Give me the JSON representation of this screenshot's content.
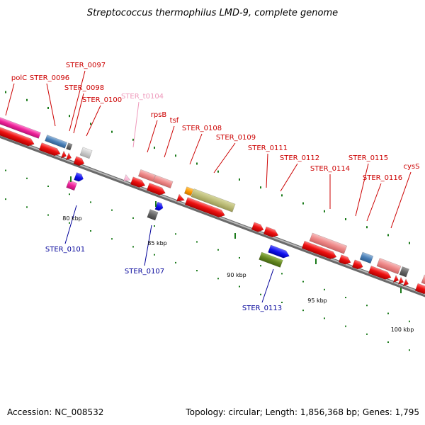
{
  "title": "Streptococcus thermophilus LMD-9, complete genome",
  "footer": {
    "accession": "Accession: NC_008532",
    "summary": "Topology: circular; Length: 1,856,368 bp; Genes: 1,795"
  },
  "colors": {
    "red_gene": "#ee1111",
    "red_label": "#cc0000",
    "blue_label": "#000099",
    "pink_label": "#ee99bb",
    "backbone": "#8a8a8a",
    "tick": "#1a7a1a"
  },
  "ticks": [
    {
      "label": "80 kbp"
    },
    {
      "label": "85 kbp"
    },
    {
      "label": "90 kbp"
    },
    {
      "label": "95 kbp"
    },
    {
      "label": "100 kbp"
    }
  ],
  "gene_labels_top": [
    {
      "name": "polC",
      "color": "red"
    },
    {
      "name": "STER_0096",
      "color": "red"
    },
    {
      "name": "STER_0097",
      "color": "red"
    },
    {
      "name": "STER_0098",
      "color": "red"
    },
    {
      "name": "STER_0100",
      "color": "red"
    },
    {
      "name": "STER_t0104",
      "color": "pink"
    },
    {
      "name": "rpsB",
      "color": "red"
    },
    {
      "name": "tsf",
      "color": "red"
    },
    {
      "name": "STER_0108",
      "color": "red"
    },
    {
      "name": "STER_0109",
      "color": "red"
    },
    {
      "name": "STER_0111",
      "color": "red"
    },
    {
      "name": "STER_0112",
      "color": "red"
    },
    {
      "name": "STER_0114",
      "color": "red"
    },
    {
      "name": "STER_0115",
      "color": "red"
    },
    {
      "name": "STER_0116",
      "color": "red"
    },
    {
      "name": "cysS",
      "color": "red"
    }
  ],
  "gene_labels_bottom": [
    {
      "name": "STER_0101",
      "color": "blue"
    },
    {
      "name": "STER_0107",
      "color": "blue"
    },
    {
      "name": "STER_0113",
      "color": "blue"
    }
  ]
}
